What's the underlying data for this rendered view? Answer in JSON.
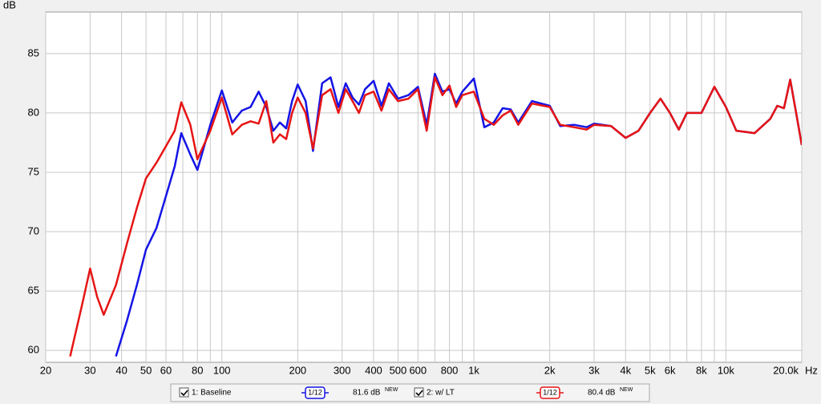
{
  "chart_data": {
    "type": "line",
    "y_label": "dB",
    "x_label": "Hz",
    "log_x": true,
    "grid": true,
    "xlim": [
      20,
      20000
    ],
    "ylim": [
      59,
      88.5
    ],
    "xticks": [
      20,
      30,
      40,
      50,
      60,
      80,
      100,
      200,
      300,
      400,
      500,
      600,
      800,
      {
        "value": 1000,
        "label": "1k"
      },
      {
        "value": 2000,
        "label": "2k"
      },
      {
        "value": 3000,
        "label": "3k"
      },
      {
        "value": 4000,
        "label": "4k"
      },
      {
        "value": 5000,
        "label": "5k"
      },
      {
        "value": 6000,
        "label": "6k"
      },
      {
        "value": 8000,
        "label": "8k"
      },
      {
        "value": 10000,
        "label": "10k"
      },
      {
        "value": 20000,
        "label": "20.0k"
      }
    ],
    "x_minor_ticks": [
      70,
      90,
      700,
      900,
      7000,
      9000
    ],
    "yticks": [
      60,
      65,
      70,
      75,
      80,
      85
    ],
    "x": [
      25,
      28,
      30,
      32,
      34,
      38,
      42,
      46,
      50,
      55,
      60,
      65,
      69,
      75,
      80,
      90,
      100,
      110,
      120,
      130,
      140,
      150,
      160,
      170,
      180,
      190,
      200,
      215,
      230,
      250,
      270,
      290,
      310,
      330,
      350,
      370,
      400,
      430,
      460,
      500,
      550,
      600,
      650,
      700,
      750,
      800,
      850,
      900,
      1000,
      1100,
      1200,
      1300,
      1400,
      1500,
      1700,
      2000,
      2200,
      2500,
      2800,
      3000,
      3500,
      4000,
      4500,
      5000,
      5500,
      6000,
      6500,
      7000,
      8000,
      9000,
      10000,
      11000,
      12000,
      13000,
      15000,
      16000,
      17000,
      18000,
      19000,
      20000
    ],
    "series": [
      {
        "name": "1: Baseline",
        "color": "#1414e6",
        "smoothing": "1/12",
        "level": "81.6 dB",
        "level_badge": "NEW",
        "values": [
          null,
          null,
          null,
          null,
          null,
          59.5,
          62.5,
          65.5,
          68.5,
          70.3,
          73,
          75.5,
          78.3,
          76.5,
          75.2,
          79,
          81.9,
          79.2,
          80.2,
          80.5,
          81.8,
          80.5,
          78.5,
          79.2,
          78.7,
          81,
          82.4,
          81,
          76.8,
          82.5,
          83,
          80.5,
          82.5,
          81.3,
          80.7,
          82,
          82.7,
          80.6,
          82.5,
          81.2,
          81.5,
          82.2,
          79,
          83.3,
          81.8,
          82,
          80.8,
          81.8,
          82.9,
          78.8,
          79.2,
          80.4,
          80.3,
          79.2,
          81,
          80.6,
          78.9,
          79,
          78.8,
          79.1,
          78.9,
          77.9,
          78.5,
          80,
          81.2,
          80,
          78.6,
          80,
          80,
          82.2,
          80.5,
          78.5,
          78.4,
          78.3,
          79.5,
          80.6,
          80.4,
          82.8,
          80,
          77.3
        ]
      },
      {
        "name": "2: w/ LT",
        "color": "#e61414",
        "smoothing": "1/12",
        "level": "80.4 dB",
        "level_badge": "NEW",
        "values": [
          59.5,
          64,
          66.9,
          64.5,
          63,
          65.5,
          69,
          72,
          74.5,
          75.8,
          77.2,
          78.5,
          80.9,
          79,
          76.1,
          78.5,
          81.3,
          78.2,
          79,
          79.3,
          79.1,
          81,
          77.5,
          78.2,
          77.8,
          80,
          81.3,
          80,
          77,
          81.5,
          82,
          80,
          82,
          81,
          80,
          81.5,
          81.8,
          80.2,
          82,
          81,
          81.2,
          82,
          78.5,
          83,
          81.5,
          82.3,
          80.5,
          81.5,
          81.8,
          79.5,
          79,
          79.8,
          80.2,
          79,
          80.8,
          80.5,
          79,
          78.8,
          78.6,
          79,
          78.9,
          77.9,
          78.5,
          80,
          81.2,
          80,
          78.6,
          80,
          80,
          82.2,
          80.5,
          78.5,
          78.4,
          78.3,
          79.5,
          80.6,
          80.4,
          82.8,
          80,
          77.3
        ]
      }
    ]
  }
}
